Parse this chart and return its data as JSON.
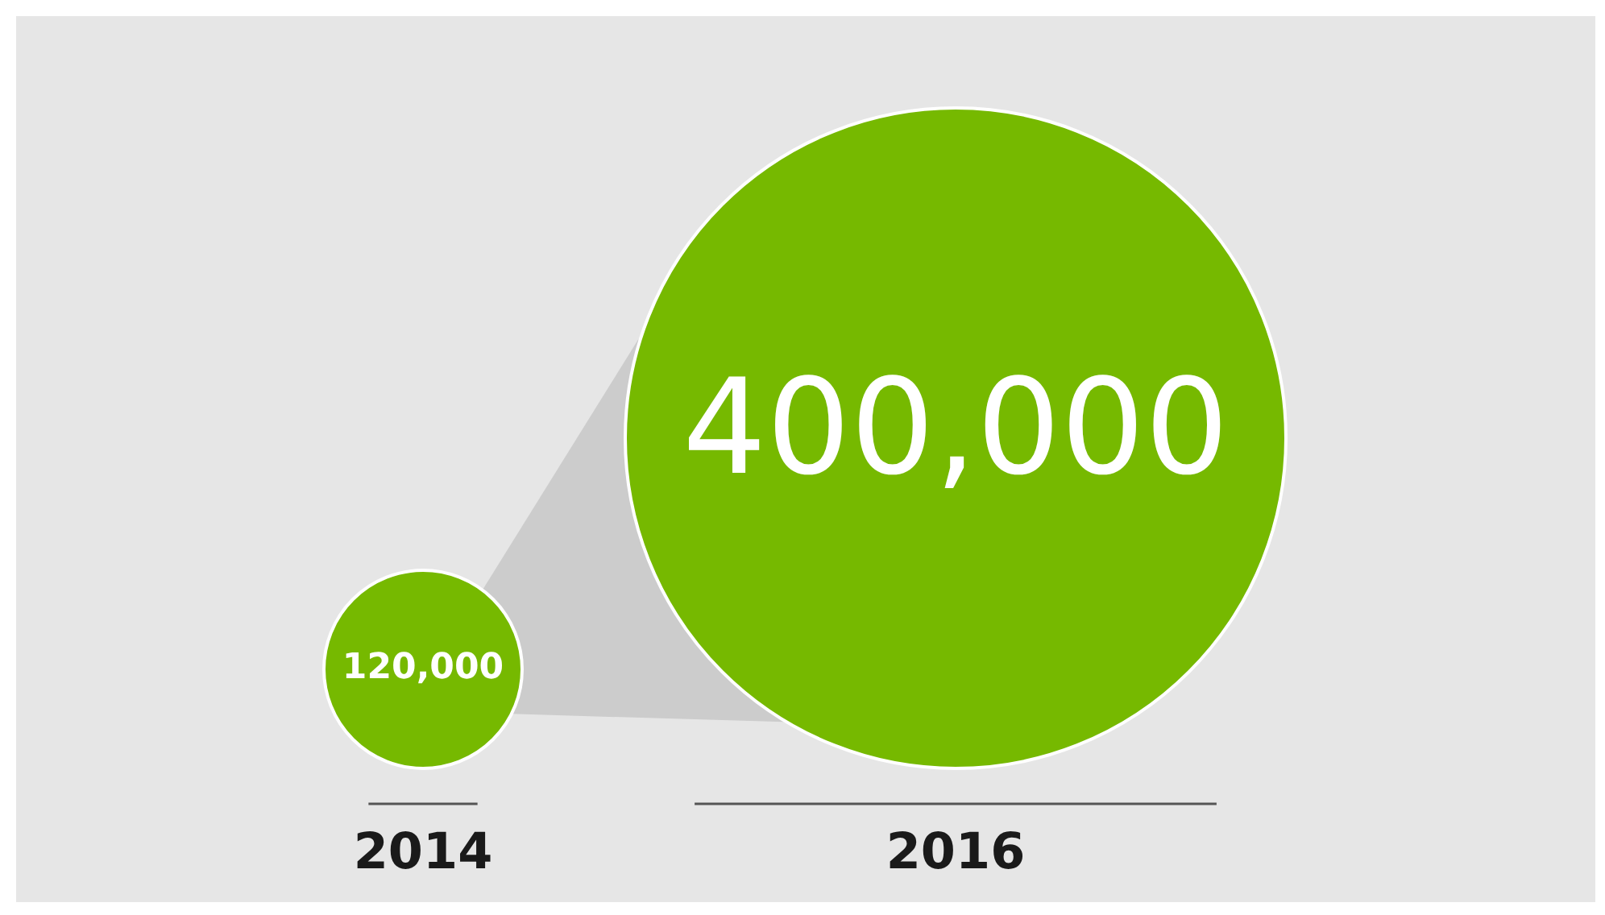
{
  "chart_data": {
    "type": "other",
    "categories": [
      "2014",
      "2016"
    ],
    "values": [
      120000,
      400000
    ],
    "color": "#76b900",
    "value_labels": [
      "120,000",
      "400,000"
    ]
  }
}
